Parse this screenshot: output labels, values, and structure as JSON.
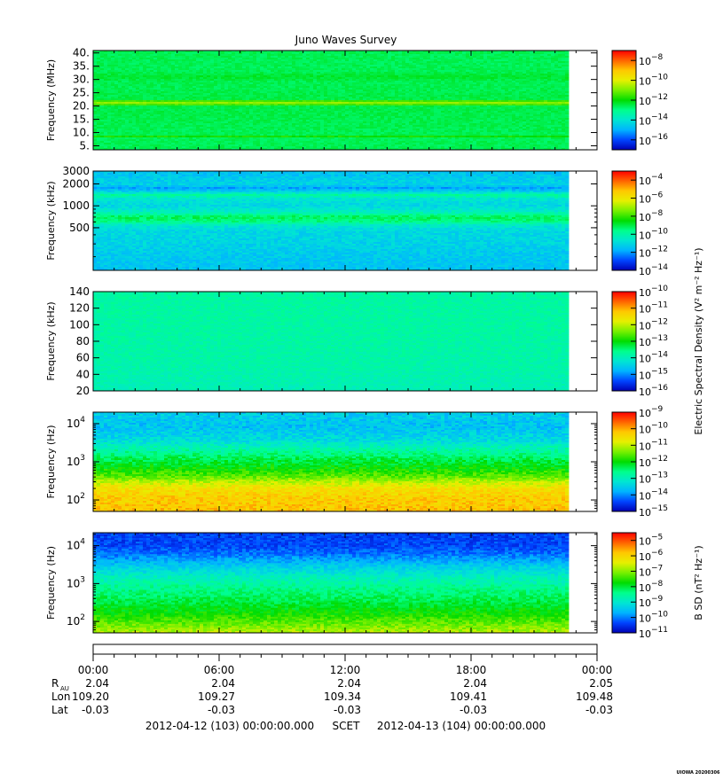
{
  "chart_data": {
    "type": "heatmap",
    "title": "Juno Waves Survey",
    "colormap": [
      "#0000b4",
      "#0044ff",
      "#00b4ff",
      "#00e6d2",
      "#00ff8c",
      "#00dc00",
      "#78f000",
      "#e6f000",
      "#ffc800",
      "#ff6400",
      "#ff0000"
    ],
    "panels": [
      {
        "id": "hfr-high",
        "ylabel": "Frequency (MHz)",
        "scale": "linear",
        "yrange": [
          3.5,
          40.9
        ],
        "yticks": [
          {
            "v": 5,
            "label": "5."
          },
          {
            "v": 10,
            "label": "10."
          },
          {
            "v": 15,
            "label": "15."
          },
          {
            "v": 20,
            "label": "20."
          },
          {
            "v": 25,
            "label": "25."
          },
          {
            "v": 30,
            "label": "30."
          },
          {
            "v": 35,
            "label": "35."
          },
          {
            "v": 40,
            "label": "40."
          }
        ],
        "data_end_fraction": 0.94,
        "profile": [
          {
            "f": 3.5,
            "lvl": 0.44
          },
          {
            "f": 8.0,
            "lvl": 0.44
          },
          {
            "f": 8.5,
            "lvl": 0.52
          },
          {
            "f": 9.2,
            "lvl": 0.44
          },
          {
            "f": 20.0,
            "lvl": 0.45
          },
          {
            "f": 20.8,
            "lvl": 0.62
          },
          {
            "f": 21.6,
            "lvl": 0.62
          },
          {
            "f": 22.3,
            "lvl": 0.45
          },
          {
            "f": 29.0,
            "lvl": 0.44
          },
          {
            "f": 31.0,
            "lvl": 0.47
          },
          {
            "f": 33.0,
            "lvl": 0.44
          },
          {
            "f": 40.9,
            "lvl": 0.44
          }
        ],
        "noise": 0.02,
        "colorbar": {
          "label": "",
          "decades": [
            -17,
            -7
          ],
          "ticks": [
            -16,
            -14,
            -12,
            -10,
            -8
          ]
        }
      },
      {
        "id": "hfr-low",
        "ylabel": "Frequency (kHz)",
        "scale": "log",
        "yrange": [
          130,
          3000
        ],
        "yticks": [
          {
            "v": 500,
            "label": "500"
          },
          {
            "v": 1000,
            "label": "1000"
          },
          {
            "v": 2000,
            "label": "2000"
          },
          {
            "v": 3000,
            "label": "3000"
          }
        ],
        "data_end_fraction": 0.94,
        "profile": [
          {
            "f": 130,
            "lvl": 0.23
          },
          {
            "f": 200,
            "lvl": 0.24
          },
          {
            "f": 300,
            "lvl": 0.26
          },
          {
            "f": 450,
            "lvl": 0.27
          },
          {
            "f": 540,
            "lvl": 0.31
          },
          {
            "f": 600,
            "lvl": 0.4
          },
          {
            "f": 700,
            "lvl": 0.44
          },
          {
            "f": 820,
            "lvl": 0.33
          },
          {
            "f": 1000,
            "lvl": 0.27
          },
          {
            "f": 1250,
            "lvl": 0.3
          },
          {
            "f": 1400,
            "lvl": 0.38
          },
          {
            "f": 1550,
            "lvl": 0.27
          },
          {
            "f": 1750,
            "lvl": 0.18
          },
          {
            "f": 1950,
            "lvl": 0.26
          },
          {
            "f": 2300,
            "lvl": 0.25
          },
          {
            "f": 2700,
            "lvl": 0.23
          },
          {
            "f": 3000,
            "lvl": 0.23
          }
        ],
        "noise": 0.035,
        "colorbar": {
          "label": "",
          "decades": [
            -14,
            -3
          ],
          "ticks": [
            -14,
            -12,
            -10,
            -8,
            -6,
            -4
          ]
        }
      },
      {
        "id": "lfr-high",
        "ylabel": "Frequency (kHz)",
        "scale": "linear",
        "yrange": [
          20,
          140
        ],
        "yticks": [
          {
            "v": 20,
            "label": "20"
          },
          {
            "v": 40,
            "label": "40"
          },
          {
            "v": 60,
            "label": "60"
          },
          {
            "v": 80,
            "label": "80"
          },
          {
            "v": 100,
            "label": "100"
          },
          {
            "v": 120,
            "label": "120"
          },
          {
            "v": 140,
            "label": "140"
          }
        ],
        "data_end_fraction": 0.94,
        "profile": [
          {
            "f": 20,
            "lvl": 0.34
          },
          {
            "f": 50,
            "lvl": 0.36
          },
          {
            "f": 100,
            "lvl": 0.37
          },
          {
            "f": 140,
            "lvl": 0.37
          }
        ],
        "noise": 0.025,
        "colorbar": {
          "label": "Electric Spectral Density (V² m⁻² Hz⁻¹)",
          "decades": [
            -16,
            -10
          ],
          "ticks": [
            -16,
            -15,
            -14,
            -13,
            -12,
            -11,
            -10
          ]
        }
      },
      {
        "id": "lfr-low",
        "ylabel": "Frequency (Hz)",
        "scale": "log",
        "yrange": [
          50,
          20000
        ],
        "yticks": [
          {
            "v": 100,
            "label": "10",
            "exp": "2"
          },
          {
            "v": 1000,
            "label": "10",
            "exp": "3"
          },
          {
            "v": 10000,
            "label": "10",
            "exp": "4"
          }
        ],
        "data_end_fraction": 0.94,
        "profile": [
          {
            "f": 50,
            "lvl": 0.8
          },
          {
            "f": 120,
            "lvl": 0.78
          },
          {
            "f": 200,
            "lvl": 0.74
          },
          {
            "f": 300,
            "lvl": 0.66
          },
          {
            "f": 420,
            "lvl": 0.57
          },
          {
            "f": 700,
            "lvl": 0.5
          },
          {
            "f": 1200,
            "lvl": 0.44
          },
          {
            "f": 2000,
            "lvl": 0.37
          },
          {
            "f": 4000,
            "lvl": 0.27
          },
          {
            "f": 8000,
            "lvl": 0.23
          },
          {
            "f": 20000,
            "lvl": 0.25
          }
        ],
        "noise": 0.05,
        "colorbar": {
          "label": "",
          "decades": [
            -15,
            -9
          ],
          "ticks": [
            -15,
            -14,
            -13,
            -12,
            -11,
            -10,
            -9
          ]
        }
      },
      {
        "id": "mag-low",
        "ylabel": "Frequency (Hz)",
        "scale": "log",
        "yrange": [
          50,
          22000
        ],
        "yticks": [
          {
            "v": 100,
            "label": "10",
            "exp": "2"
          },
          {
            "v": 1000,
            "label": "10",
            "exp": "3"
          },
          {
            "v": 10000,
            "label": "10",
            "exp": "4"
          }
        ],
        "data_end_fraction": 0.94,
        "profile": [
          {
            "f": 50,
            "lvl": 0.66
          },
          {
            "f": 90,
            "lvl": 0.58
          },
          {
            "f": 150,
            "lvl": 0.52
          },
          {
            "f": 300,
            "lvl": 0.46
          },
          {
            "f": 700,
            "lvl": 0.4
          },
          {
            "f": 1500,
            "lvl": 0.33
          },
          {
            "f": 3000,
            "lvl": 0.24
          },
          {
            "f": 6000,
            "lvl": 0.14
          },
          {
            "f": 10000,
            "lvl": 0.1
          },
          {
            "f": 22000,
            "lvl": 0.09
          }
        ],
        "noise": 0.045,
        "colorbar": {
          "label": "B SD (nT² Hz⁻¹)",
          "decades": [
            -11,
            -4.5
          ],
          "ticks": [
            -11,
            -10,
            -9,
            -8,
            -7,
            -6,
            -5
          ]
        }
      }
    ],
    "xaxis": {
      "range_hours": [
        0,
        24
      ],
      "ticks": [
        {
          "h": 0,
          "label": "00:00",
          "r": "2.04",
          "lon": "109.20",
          "lat": "-0.03"
        },
        {
          "h": 6,
          "label": "06:00",
          "r": "2.04",
          "lon": "109.27",
          "lat": "-0.03"
        },
        {
          "h": 12,
          "label": "12:00",
          "r": "2.04",
          "lon": "109.34",
          "lat": "-0.03"
        },
        {
          "h": 18,
          "label": "18:00",
          "r": "2.04",
          "lon": "109.41",
          "lat": "-0.03"
        },
        {
          "h": 24,
          "label": "00:00",
          "r": "2.05",
          "lon": "109.48",
          "lat": "-0.03"
        }
      ]
    },
    "ephemeris_labels": {
      "r": "R",
      "r_sub": "AU",
      "lon": "Lon",
      "lat": "Lat"
    },
    "footer": {
      "start": "2012-04-12 (103) 00:00:00.000",
      "scet": "SCET",
      "end": "2012-04-13 (104) 00:00:00.000"
    },
    "stamp": "UIOWA 20200306"
  }
}
